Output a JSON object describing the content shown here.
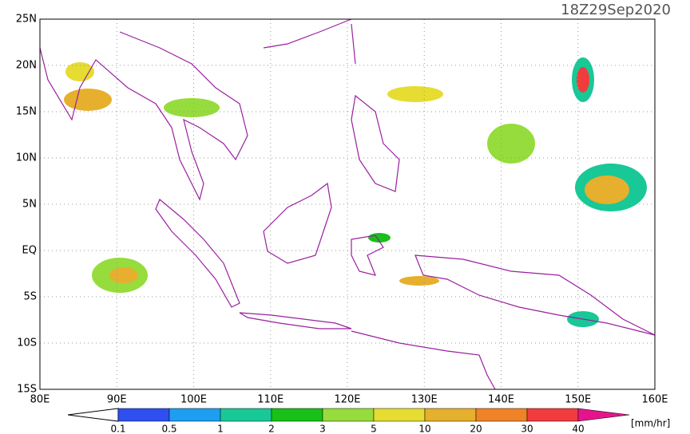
{
  "title": "18Z29Sep2020",
  "map": {
    "lat_labels": [
      "25N",
      "20N",
      "15N",
      "10N",
      "5N",
      "EQ",
      "5S",
      "10S",
      "15S"
    ],
    "lon_labels": [
      "80E",
      "90E",
      "100E",
      "110E",
      "120E",
      "130E",
      "140E",
      "150E",
      "160E"
    ]
  },
  "colorbar": {
    "labels": [
      "0.1",
      "0.5",
      "1",
      "2",
      "3",
      "5",
      "10",
      "20",
      "30",
      "40"
    ],
    "colors": [
      "#2f4ff0",
      "#1e9ef0",
      "#18c896",
      "#18c018",
      "#96dc3c",
      "#e6dc32",
      "#e6af2d",
      "#f08228",
      "#f03c3c",
      "#e6148c"
    ],
    "unit": "[mm/hr]"
  }
}
